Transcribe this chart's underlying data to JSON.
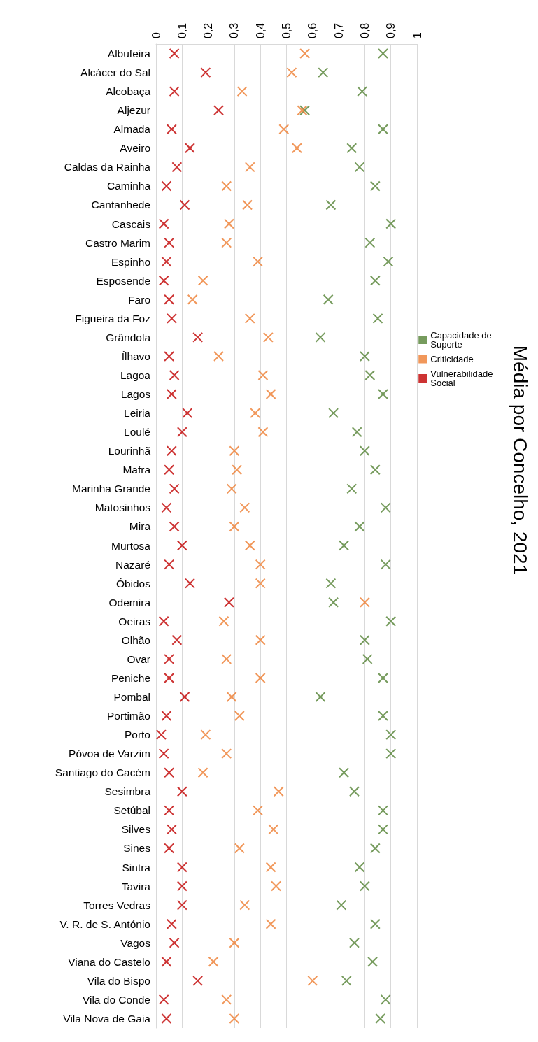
{
  "chart_data": {
    "type": "scatter",
    "title": "Média por Concelho, 2021",
    "orientation": "horizontal",
    "marker": "cross",
    "grid": "x",
    "legend": "right",
    "categories": [
      "Albufeira",
      "Alcácer do Sal",
      "Alcobaça",
      "Aljezur",
      "Almada",
      "Aveiro",
      "Caldas da Rainha",
      "Caminha",
      "Cantanhede",
      "Cascais",
      "Castro Marim",
      "Espinho",
      "Esposende",
      "Faro",
      "Figueira da Foz",
      "Grândola",
      "Ílhavo",
      "Lagoa",
      "Lagos",
      "Leiria",
      "Loulé",
      "Lourinhã",
      "Mafra",
      "Marinha Grande",
      "Matosinhos",
      "Mira",
      "Murtosa",
      "Nazaré",
      "Óbidos",
      "Odemira",
      "Oeiras",
      "Olhão",
      "Ovar",
      "Peniche",
      "Pombal",
      "Portimão",
      "Porto",
      "Póvoa de Varzim",
      "Santiago do Cacém",
      "Sesimbra",
      "Setúbal",
      "Silves",
      "Sines",
      "Sintra",
      "Tavira",
      "Torres Vedras",
      "V. R. de S. António",
      "Vagos",
      "Viana do Castelo",
      "Vila do Bispo",
      "Vila do Conde",
      "Vila Nova de Gaia"
    ],
    "xlim": [
      0,
      1
    ],
    "xticks": [
      0,
      {
        "value": 0.1,
        "label": "0,1"
      },
      {
        "value": 0.2,
        "label": "0,2"
      },
      {
        "value": 0.3,
        "label": "0,3"
      },
      {
        "value": 0.4,
        "label": "0,4"
      },
      {
        "value": 0.5,
        "label": "0,5"
      },
      {
        "value": 0.6,
        "label": "0,6"
      },
      {
        "value": 0.7,
        "label": "0,7"
      },
      {
        "value": 0.8,
        "label": "0,8"
      },
      {
        "value": 0.9,
        "label": "0,9"
      },
      1
    ],
    "series": [
      {
        "name": "Capacidade de Suporte",
        "color": "#548235",
        "values": [
          0.87,
          0.64,
          0.79,
          0.57,
          0.87,
          0.75,
          0.78,
          0.84,
          0.67,
          0.9,
          0.82,
          0.89,
          0.84,
          0.66,
          0.85,
          0.63,
          0.8,
          0.82,
          0.87,
          0.68,
          0.77,
          0.8,
          0.84,
          0.75,
          0.88,
          0.78,
          0.72,
          0.88,
          0.67,
          0.68,
          0.9,
          0.8,
          0.81,
          0.87,
          0.63,
          0.87,
          0.9,
          0.9,
          0.72,
          0.76,
          0.87,
          0.87,
          0.84,
          0.78,
          0.8,
          0.71,
          0.84,
          0.76,
          0.83,
          0.73,
          0.88,
          0.86
        ]
      },
      {
        "name": "Criticidade",
        "color": "#ed7d31",
        "values": [
          0.57,
          0.52,
          0.33,
          0.56,
          0.49,
          0.54,
          0.36,
          0.27,
          0.35,
          0.28,
          0.27,
          0.39,
          0.18,
          0.14,
          0.36,
          0.43,
          0.24,
          0.41,
          0.44,
          0.38,
          0.41,
          0.3,
          0.31,
          0.29,
          0.34,
          0.3,
          0.36,
          0.4,
          0.4,
          0.8,
          0.26,
          0.4,
          0.27,
          0.4,
          0.29,
          0.32,
          0.19,
          0.27,
          0.18,
          0.47,
          0.39,
          0.45,
          0.32,
          0.44,
          0.46,
          0.34,
          0.44,
          0.3,
          0.22,
          0.6,
          0.27,
          0.3
        ]
      },
      {
        "name": "Vulnerabilidade Social",
        "color": "#c00000",
        "values": [
          0.07,
          0.19,
          0.07,
          0.24,
          0.06,
          0.13,
          0.08,
          0.04,
          0.11,
          0.03,
          0.05,
          0.04,
          0.03,
          0.05,
          0.06,
          0.16,
          0.05,
          0.07,
          0.06,
          0.12,
          0.1,
          0.06,
          0.05,
          0.07,
          0.04,
          0.07,
          0.1,
          0.05,
          0.13,
          0.28,
          0.03,
          0.08,
          0.05,
          0.05,
          0.11,
          0.04,
          0.02,
          0.03,
          0.05,
          0.1,
          0.05,
          0.06,
          0.05,
          0.1,
          0.1,
          0.1,
          0.06,
          0.07,
          0.04,
          0.16,
          0.03,
          0.04
        ]
      }
    ]
  }
}
